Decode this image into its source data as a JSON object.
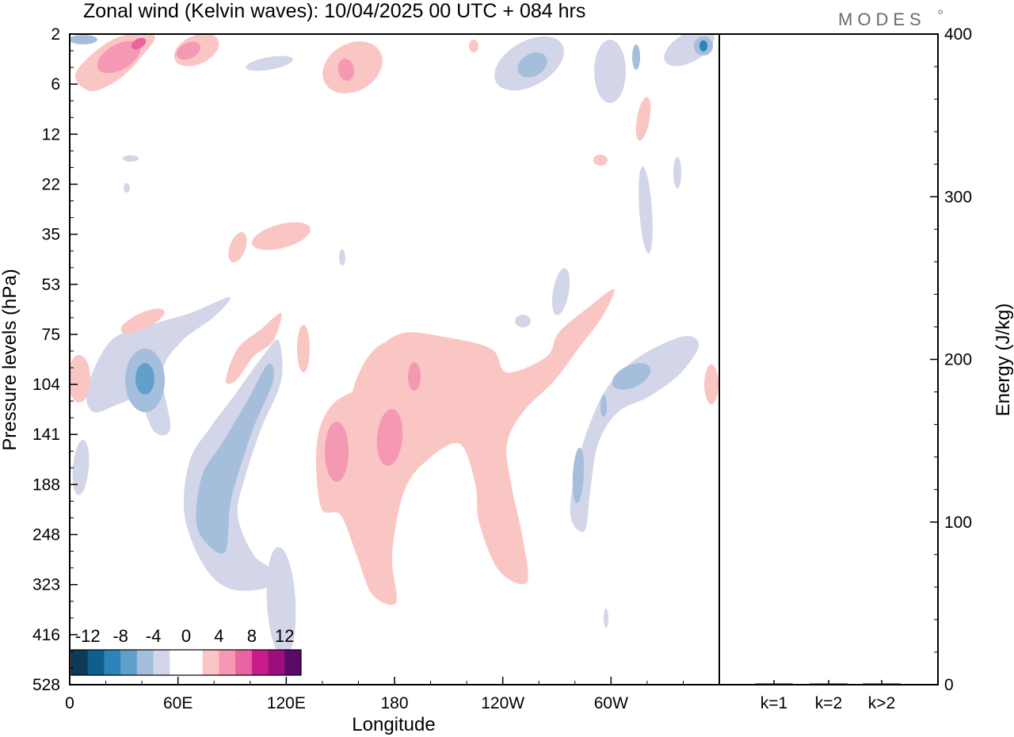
{
  "header": {
    "title": "Zonal wind (Kelvin waves):  10/04/2025  00 UTC  + 084 hrs",
    "logo": "MODES"
  },
  "chart_data": [
    {
      "type": "heatmap",
      "title": "Zonal wind (Kelvin waves):  10/04/2025  00 UTC  + 084 hrs",
      "xlabel": "Longitude",
      "ylabel": "Pressure levels (hPa)",
      "x_ticks": [
        "0",
        "60E",
        "120E",
        "180",
        "120W",
        "60W"
      ],
      "y_ticks": [
        "2",
        "6",
        "12",
        "22",
        "35",
        "53",
        "75",
        "104",
        "141",
        "188",
        "248",
        "323",
        "416",
        "528"
      ],
      "y_scale": "nonlinear",
      "colorbar": {
        "labels": [
          "-12",
          "-8",
          "-4",
          "0",
          "4",
          "8",
          "12"
        ],
        "colors": [
          "#0d3b57",
          "#0e5f8e",
          "#2d84b8",
          "#62a0cc",
          "#a4bedc",
          "#d3d5e9",
          "#ffffff",
          "#ffffff",
          "#f9c6c4",
          "#f598b4",
          "#e964a0",
          "#c81c8b",
          "#9c0f7b",
          "#5c0a6a"
        ]
      },
      "features": [
        {
          "sign": "positive",
          "lon_range": [
            120,
            205
          ],
          "levels_hPa": [
            75,
            323
          ],
          "peak_value": 6
        },
        {
          "sign": "positive",
          "lon_range": [
            150,
            260
          ],
          "levels_hPa": [
            53,
            300
          ],
          "peak_value": 4
        },
        {
          "sign": "negative",
          "lon_range": [
            52,
            95
          ],
          "levels_hPa": [
            104,
            323
          ],
          "peak_value": -8
        },
        {
          "sign": "negative",
          "lon_range": [
            22,
            45
          ],
          "levels_hPa": [
            75,
            141
          ],
          "peak_value": -9
        },
        {
          "sign": "negative",
          "lon_range": [
            265,
            330
          ],
          "levels_hPa": [
            75,
            248
          ],
          "peak_value": -8
        },
        {
          "sign": "positive",
          "lon_range": [
            10,
            60
          ],
          "levels_hPa": [
            2,
            6
          ],
          "peak_value": 10
        },
        {
          "sign": "negative",
          "lon_range": [
            240,
            320
          ],
          "levels_hPa": [
            2,
            6
          ],
          "peak_value": -8
        }
      ]
    },
    {
      "type": "bar",
      "categories": [
        "k=1",
        "k=2",
        "k>2"
      ],
      "values": [
        0.5,
        0.5,
        0.5
      ],
      "ylabel": "Energy (J/kg)",
      "ylim": [
        0,
        400
      ],
      "y_ticks": [
        "0",
        "100",
        "200",
        "300",
        "400"
      ]
    }
  ],
  "colors": {
    "neg_light": "#d3d5e9",
    "neg_mid": "#a4bedc",
    "neg_dark": "#62a0cc",
    "neg_darker": "#2d84b8",
    "pos_light": "#f9c6c4",
    "pos_mid": "#f598b4",
    "pos_dark": "#e964a0"
  }
}
